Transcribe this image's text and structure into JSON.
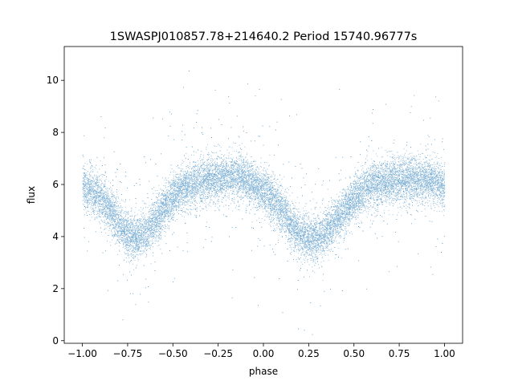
{
  "chart_data": {
    "type": "scatter",
    "title": "1SWASPJ010857.78+214640.2 Period 15740.96777s",
    "xlabel": "phase",
    "ylabel": "flux",
    "xlim": [
      -1.1,
      1.1
    ],
    "ylim": [
      -0.1,
      11.3
    ],
    "x_ticks": [
      -1.0,
      -0.75,
      -0.5,
      -0.25,
      0.0,
      0.25,
      0.5,
      0.75,
      1.0
    ],
    "x_tick_labels": [
      "−1.00",
      "−0.75",
      "−0.50",
      "−0.25",
      "0.00",
      "0.25",
      "0.50",
      "0.75",
      "1.00"
    ],
    "y_ticks": [
      0,
      2,
      4,
      6,
      8,
      10
    ],
    "y_tick_labels": [
      "0",
      "2",
      "4",
      "6",
      "8",
      "10"
    ],
    "grid": false,
    "marker_color": "#1f77b4",
    "series": [
      {
        "x": [
          -1.0,
          -0.95,
          -0.9,
          -0.85,
          -0.8,
          -0.75,
          -0.7,
          -0.65,
          -0.6,
          -0.55,
          -0.5,
          -0.45,
          -0.4,
          -0.35,
          -0.3,
          -0.25,
          -0.2,
          -0.15,
          -0.1,
          -0.05,
          0.0,
          0.05,
          0.1,
          0.15,
          0.2,
          0.25,
          0.3,
          0.35,
          0.4,
          0.45,
          0.5,
          0.55,
          0.6,
          0.65,
          0.7,
          0.75,
          0.8,
          0.85,
          0.9,
          0.95,
          1.0
        ],
        "y": [
          5.9,
          5.75,
          5.45,
          5.0,
          4.5,
          4.05,
          3.95,
          4.15,
          4.6,
          5.1,
          5.5,
          5.8,
          6.0,
          6.1,
          6.2,
          6.25,
          6.3,
          6.3,
          6.2,
          6.0,
          5.75,
          5.4,
          5.0,
          4.5,
          4.05,
          3.9,
          3.95,
          4.2,
          4.6,
          5.05,
          5.45,
          5.75,
          5.95,
          6.05,
          6.1,
          6.15,
          6.2,
          6.2,
          6.15,
          6.05,
          5.9
        ]
      }
    ]
  }
}
